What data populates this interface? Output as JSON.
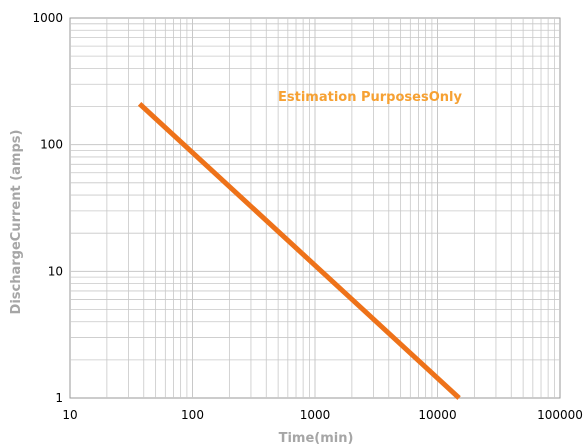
{
  "chart_data": {
    "type": "line",
    "title": "",
    "xlabel": "Time(min)",
    "ylabel": "DischargeCurrent (amps)",
    "xscale": "log",
    "yscale": "log",
    "xlim": [
      10,
      100000
    ],
    "ylim": [
      1,
      1000
    ],
    "grid": true,
    "x_tick_labels": [
      "10",
      "100",
      "1000",
      "10000",
      "100000"
    ],
    "y_tick_labels": [
      "1",
      "10",
      "100",
      "1000"
    ],
    "annotation": "Estimation PurposesOnly",
    "series": [
      {
        "x": [
          37,
          15000
        ],
        "y": [
          210,
          1
        ],
        "color": "#ee7219"
      }
    ],
    "colors": {
      "line": "#ee7219",
      "annotation": "#f6a133",
      "grid": "#c8c8c8",
      "axis_title": "#a6a6a6"
    }
  }
}
